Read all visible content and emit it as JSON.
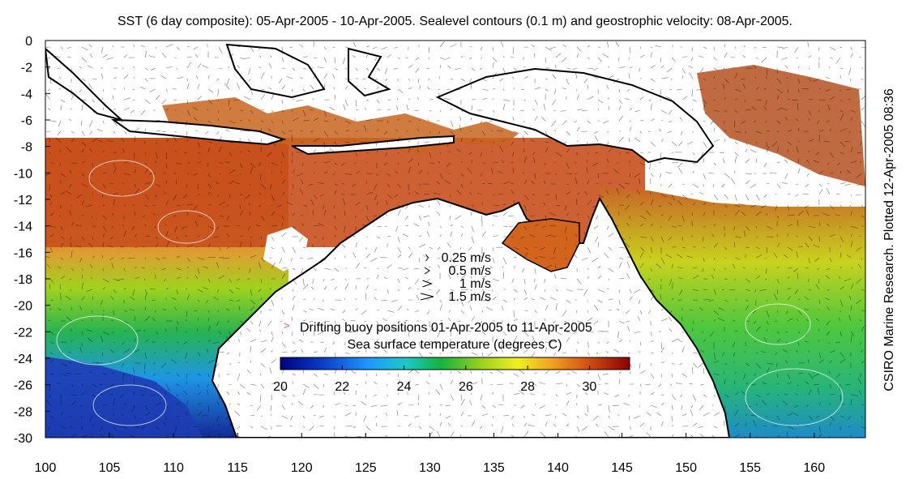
{
  "map": {
    "title": "SST (6 day composite): 05-Apr-2005 - 10-Apr-2005. Sealevel contours (0.1 m) and geostrophic velocity: 08-Apr-2005.",
    "credit": "CSIRO Marine Research. Plotted 12-Apr-2005 08:36",
    "lon_range": [
      100,
      164
    ],
    "lat_range": [
      -30,
      0
    ],
    "lon_ticks": [
      "100",
      "105",
      "110",
      "115",
      "120",
      "125",
      "130",
      "135",
      "140",
      "145",
      "150",
      "155",
      "160"
    ],
    "lat_ticks": [
      "0",
      "-2",
      "-4",
      "-6",
      "-8",
      "-10",
      "-12",
      "-14",
      "-16",
      "-18",
      "-20",
      "-22",
      "-24",
      "-26",
      "-28",
      "-30"
    ],
    "velocity_legend": [
      "0.25 m/s",
      "0.5 m/s",
      "1 m/s",
      "1.5 m/s"
    ],
    "buoy_legend": "Drifting buoy positions 01-Apr-2005 to 11-Apr-2005",
    "colorbar_label": "Sea surface temperature (degrees C)",
    "colorbar_ticks": [
      "20",
      "22",
      "24",
      "26",
      "28",
      "30"
    ],
    "colorbar_range": [
      20,
      31.3
    ],
    "colors": {
      "land": "#ffffff",
      "coast": "#000000",
      "buoy": "#ff33ff",
      "sst_low": "#000080",
      "sst_high": "#8b0000"
    }
  }
}
